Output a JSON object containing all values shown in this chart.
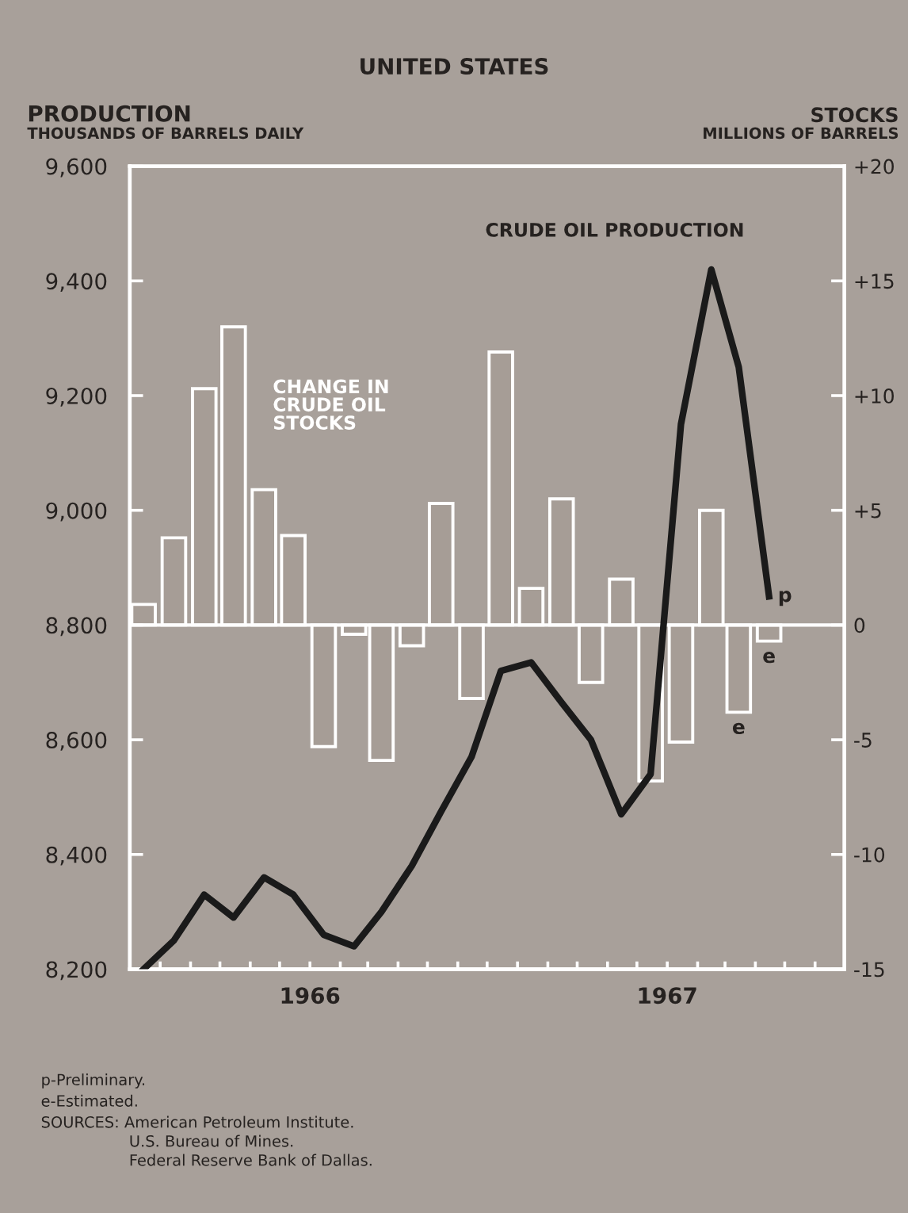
{
  "chart_data": {
    "type": "bar",
    "title": "UNITED STATES",
    "ylabel": "PRODUCTION\nTHOUSANDS OF BARRELS DAILY",
    "y2label": "STOCKS\nMILLIONS OF BARRELS",
    "x": [
      "1965-07-15",
      "1965-08-15",
      "1965-09-15",
      "1965-10-15",
      "1965-11-15",
      "1965-12-15",
      "1966-01-15",
      "1966-02-15",
      "1966-03-15",
      "1966-04-15",
      "1966-05-15",
      "1966-06-15",
      "1966-07-15",
      "1966-08-15",
      "1966-09-15",
      "1966-10-15",
      "1966-11-15",
      "1966-12-15",
      "1967-01-15",
      "1967-02-15",
      "1967-03-15",
      "1967-04-15"
    ],
    "series": [
      {
        "name": "CHANGE IN CRUDE OIL STOCKS",
        "axis": "y2",
        "color": "#a69d96",
        "values": [
          0.9,
          3.8,
          10.3,
          13.0,
          5.9,
          3.9,
          -5.3,
          -0.4,
          -5.9,
          -0.9,
          5.3,
          -3.2,
          11.9,
          1.6,
          5.5,
          -2.5,
          2.0,
          -6.8,
          -5.1,
          5.0,
          -3.8,
          -0.7
        ],
        "value_labels": [
          null,
          null,
          null,
          null,
          null,
          null,
          null,
          null,
          null,
          null,
          null,
          null,
          null,
          null,
          null,
          null,
          null,
          null,
          null,
          null,
          "e",
          "e"
        ]
      },
      {
        "name": "CRUDE OIL PRODUCTION",
        "type": "line",
        "color": "#1a1a1a",
        "values": [
          8200,
          8250,
          8330,
          8290,
          8360,
          8330,
          8260,
          8240,
          8300,
          8380,
          8475,
          8570,
          8720,
          8735,
          8665,
          8600,
          8470,
          8540,
          9150,
          9420,
          9250,
          8850
        ],
        "value_labels": [
          null,
          null,
          null,
          null,
          null,
          null,
          null,
          null,
          null,
          null,
          null,
          null,
          null,
          null,
          null,
          null,
          null,
          null,
          null,
          null,
          null,
          "p"
        ]
      }
    ],
    "xlim": [
      "1965-07-01",
      "1967-07-01"
    ],
    "xticks": [
      {
        "value": "1965-08-01",
        "label": null
      },
      {
        "value": "1965-09-01",
        "label": null
      },
      {
        "value": "1965-10-01",
        "label": null
      },
      {
        "value": "1965-11-01",
        "label": null
      },
      {
        "value": "1965-12-01",
        "label": null
      },
      {
        "value": "1966-01-01",
        "label": "1966"
      },
      {
        "value": "1966-02-01",
        "label": null
      },
      {
        "value": "1966-03-01",
        "label": null
      },
      {
        "value": "1966-04-01",
        "label": null
      },
      {
        "value": "1966-05-01",
        "label": null
      },
      {
        "value": "1966-06-01",
        "label": null
      },
      {
        "value": "1966-07-01",
        "label": null
      },
      {
        "value": "1966-08-01",
        "label": null
      },
      {
        "value": "1966-09-01",
        "label": null
      },
      {
        "value": "1966-10-01",
        "label": null
      },
      {
        "value": "1966-11-01",
        "label": null
      },
      {
        "value": "1966-12-01",
        "label": null
      },
      {
        "value": "1967-01-01",
        "label": "1967"
      },
      {
        "value": "1967-02-01",
        "label": null
      },
      {
        "value": "1967-03-01",
        "label": null
      },
      {
        "value": "1967-04-01",
        "label": null
      },
      {
        "value": "1967-05-01",
        "label": null
      },
      {
        "value": "1967-06-01",
        "label": null
      }
    ],
    "ylim": [
      8200,
      9600
    ],
    "yticks": [
      {
        "value": 8200,
        "label": "8,200"
      },
      {
        "value": 8400,
        "label": "8,400"
      },
      {
        "value": 8600,
        "label": "8,600"
      },
      {
        "value": 8800,
        "label": "8,800"
      },
      {
        "value": 9000,
        "label": "9,000"
      },
      {
        "value": 9200,
        "label": "9,200"
      },
      {
        "value": 9400,
        "label": "9,400"
      },
      {
        "value": 9600,
        "label": "9,600"
      }
    ],
    "y2lim": [
      -15,
      20
    ],
    "y2ticks": [
      {
        "value": -15,
        "label": "-15"
      },
      {
        "value": -10,
        "label": "-10"
      },
      {
        "value": -5,
        "label": "-5"
      },
      0,
      {
        "value": 5,
        "label": "+5"
      },
      {
        "value": 10,
        "label": "+10"
      },
      {
        "value": 15,
        "label": "+15"
      },
      {
        "value": 20,
        "label": "+20"
      }
    ],
    "ref_lines": [
      {
        "axis": "y2",
        "value": 0,
        "color": "#ffffff"
      }
    ],
    "grid": false,
    "legend": false,
    "annotations": [
      "p-Preliminary.",
      "e-Estimated.",
      "SOURCES: American Petroleum Institute.\n                  U.S. Bureau of Mines.\n                  Federal Reserve Bank of Dallas."
    ]
  }
}
